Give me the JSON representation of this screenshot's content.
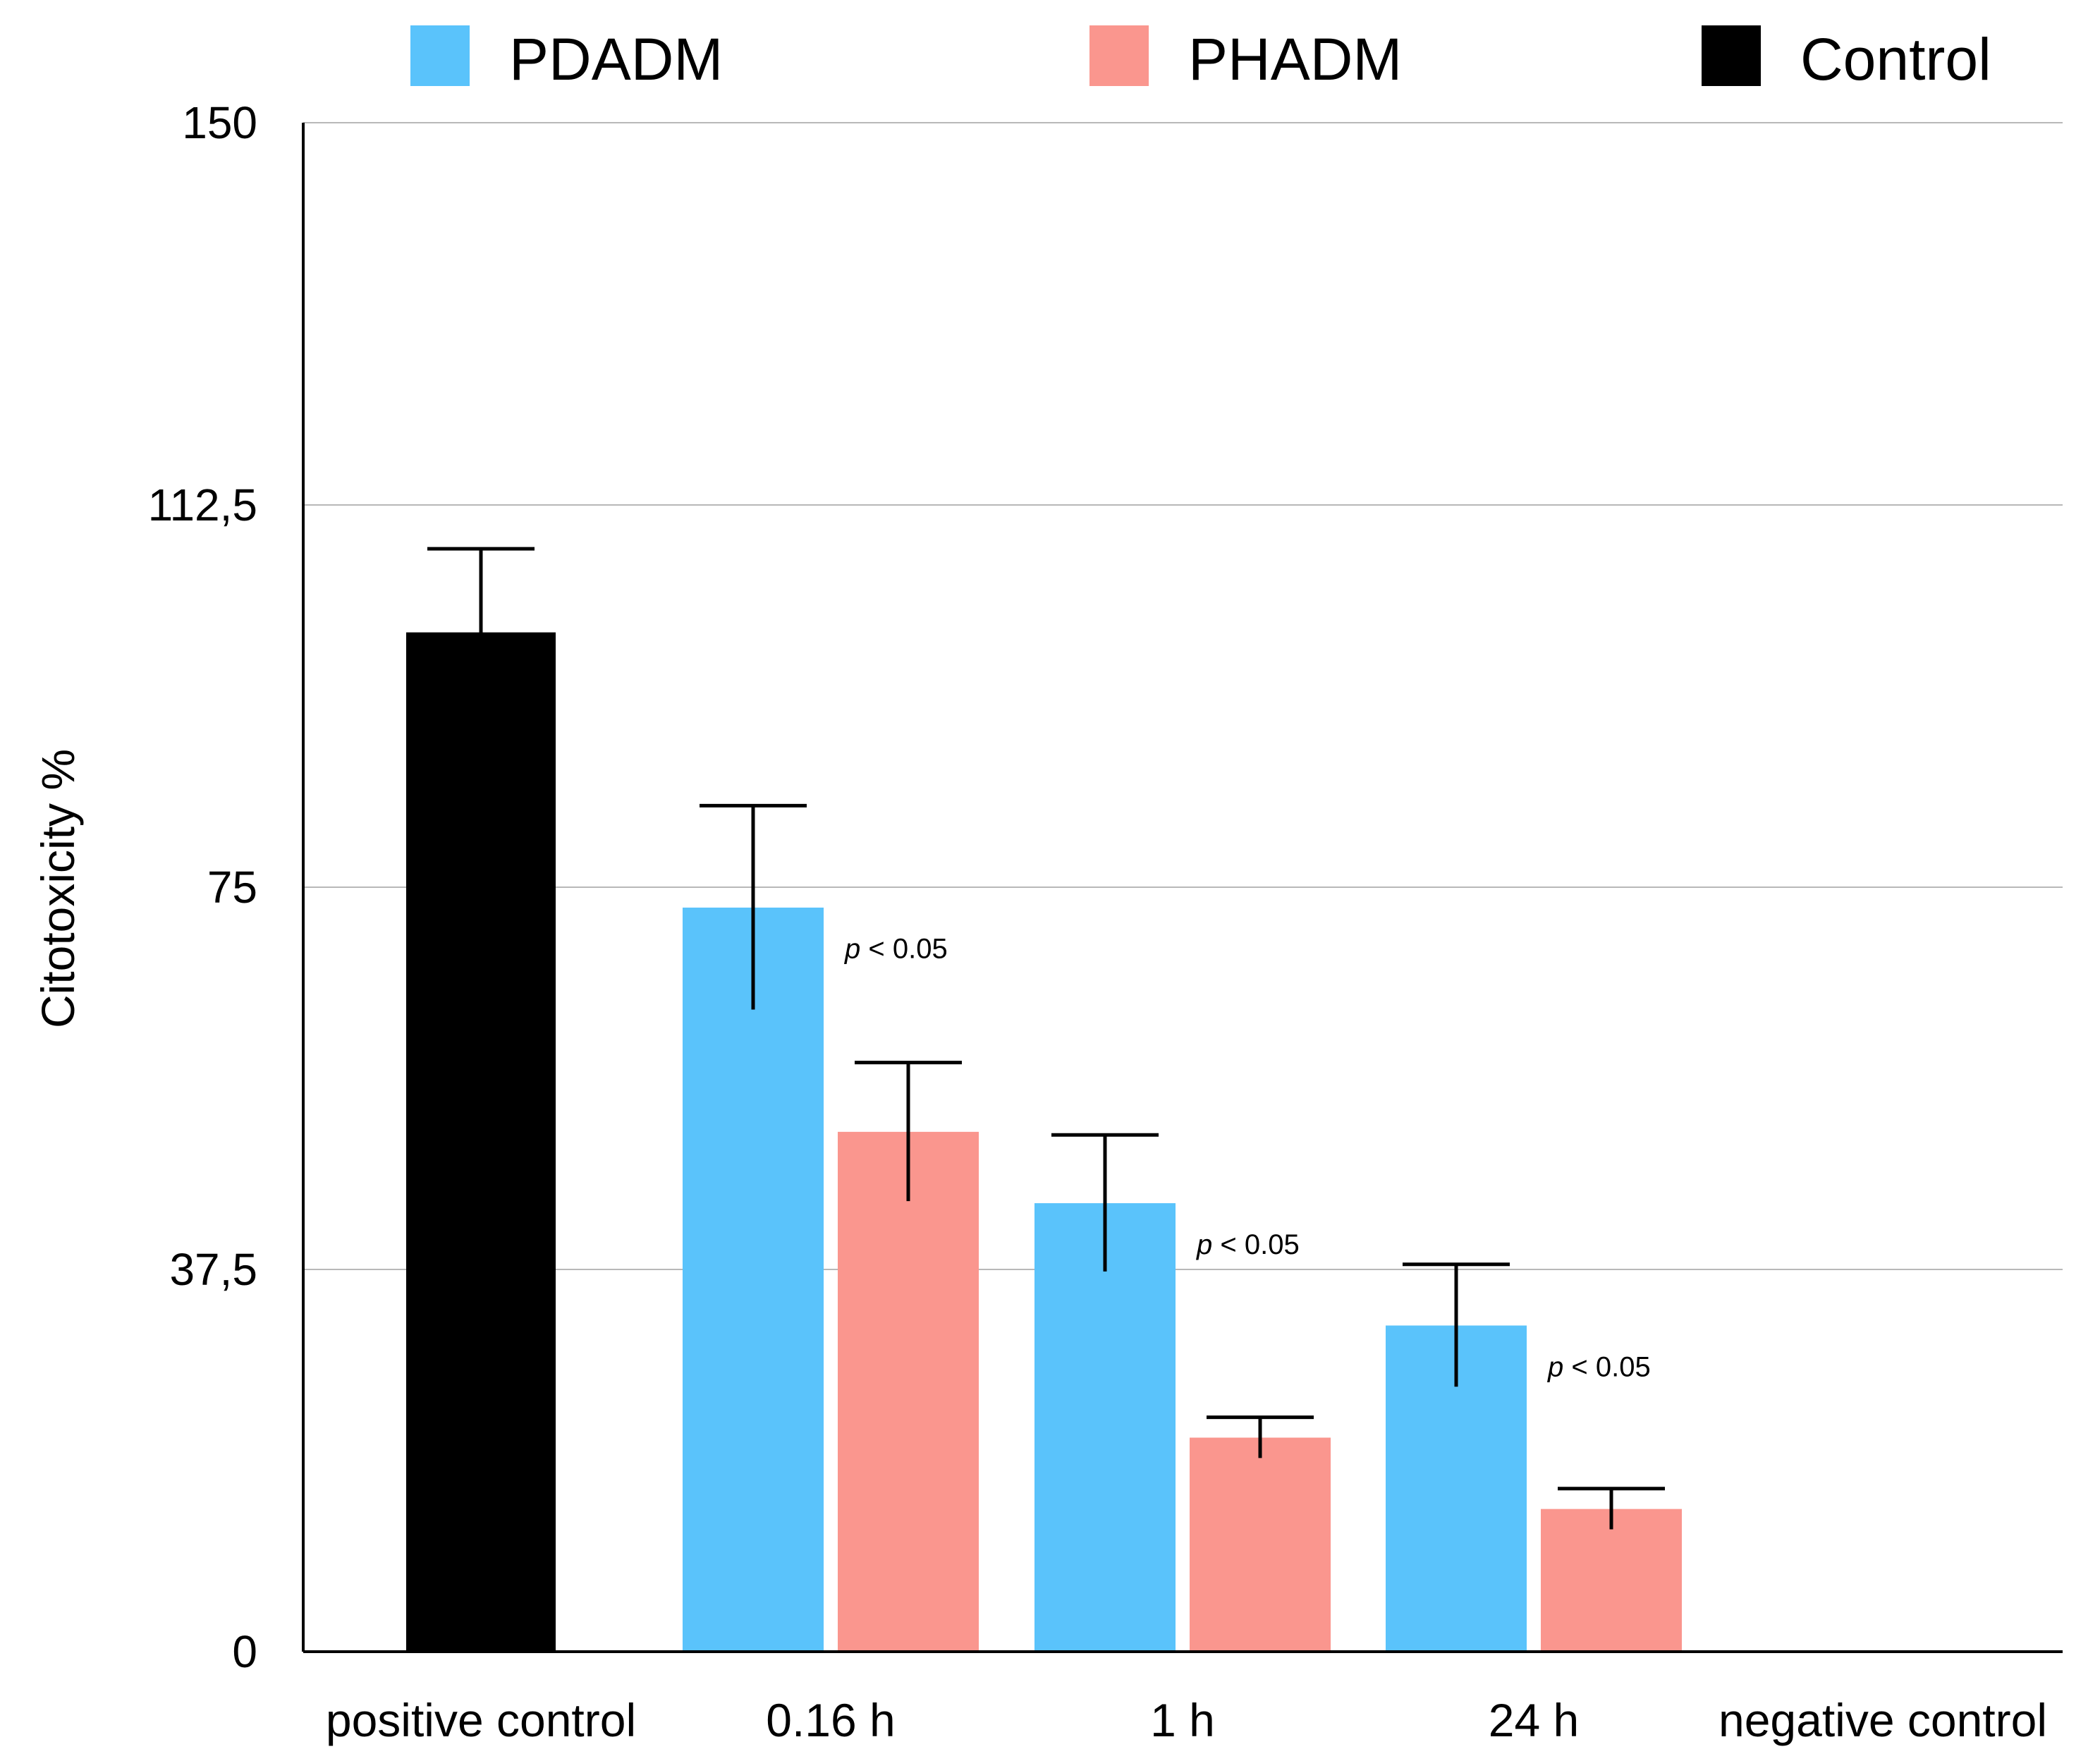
{
  "chart_data": {
    "type": "bar",
    "ylabel": "Citotoxicity %",
    "ylim": [
      0,
      150
    ],
    "yticks": [
      "0",
      "37,5",
      "75",
      "112,5",
      "150"
    ],
    "ytick_values": [
      0,
      37.5,
      75,
      112.5,
      150
    ],
    "grid": true,
    "legend_position": "top",
    "categories": [
      "positive control",
      "0.16 h",
      "1 h",
      "24 h",
      "negative control"
    ],
    "series": [
      {
        "name": "PDADM",
        "color": "#5AC3FB",
        "values": [
          null,
          73.0,
          44.0,
          32.0,
          null
        ],
        "errors": [
          null,
          10.0,
          6.7,
          6.0,
          null
        ]
      },
      {
        "name": "PHADM",
        "color": "#FA968E",
        "values": [
          null,
          51.0,
          21.0,
          14.0,
          null
        ],
        "errors": [
          null,
          6.8,
          2.0,
          2.0,
          null
        ]
      },
      {
        "name": "Control",
        "color": "#000000",
        "values": [
          100.0,
          null,
          null,
          null,
          0
        ],
        "errors": [
          8.2,
          null,
          null,
          null,
          null
        ]
      }
    ],
    "annotations": [
      {
        "text": "p < 0.05",
        "category": "0.16 h",
        "value": 69
      },
      {
        "text": "p < 0.05",
        "category": "1 h",
        "value": 40
      },
      {
        "text": "p < 0.05",
        "category": "24 h",
        "value": 28
      }
    ]
  }
}
